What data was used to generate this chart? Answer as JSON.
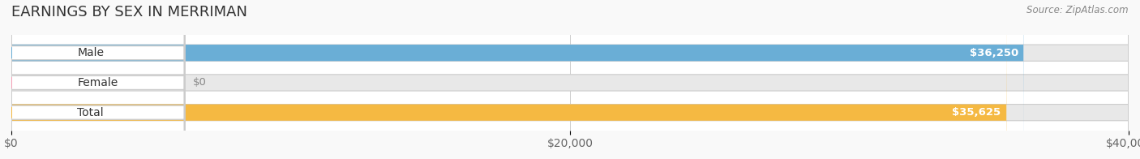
{
  "title": "EARNINGS BY SEX IN MERRIMAN",
  "source": "Source: ZipAtlas.com",
  "categories": [
    "Male",
    "Female",
    "Total"
  ],
  "values": [
    36250,
    0,
    35625
  ],
  "bar_colors": [
    "#6aaed6",
    "#f4a0b5",
    "#f5b942"
  ],
  "bar_bg_color": "#e8e8e8",
  "label_bg_color": "#ffffff",
  "xlim": [
    0,
    40000
  ],
  "xticks": [
    0,
    20000,
    40000
  ],
  "xtick_labels": [
    "$0",
    "$20,000",
    "$40,000"
  ],
  "value_labels": [
    "$36,250",
    "$0",
    "$35,625"
  ],
  "title_fontsize": 13,
  "tick_fontsize": 10,
  "label_fontsize": 10,
  "value_fontsize": 9.5,
  "bar_height": 0.55,
  "background_color": "#f9f9f9",
  "plot_bg_color": "#ffffff"
}
